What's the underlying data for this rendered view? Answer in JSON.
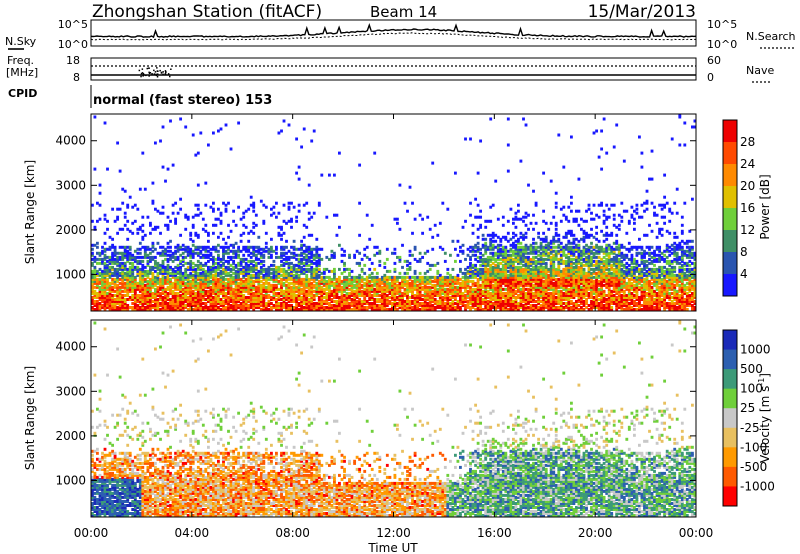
{
  "header": {
    "station": "Zhongshan Station (fitACF)",
    "beam": "Beam 14",
    "date": "15/Mar/2013"
  },
  "noise_panel": {
    "left_label": "N.Sky",
    "right_label": "N.Search",
    "tick_top": "10^5",
    "tick_bottom": "10^0"
  },
  "freq_panel": {
    "left_label_line1": "Freq.",
    "left_label_line2": "[MHz]",
    "right_label": "Nave",
    "left_tick_top": "18",
    "left_tick_bottom": "8",
    "right_tick_top": "60",
    "right_tick_bottom": "0"
  },
  "cpid_panel": {
    "left_label": "CPID",
    "text": "normal (fast stereo) 153"
  },
  "colors": {
    "power_scale": [
      "#1818ff",
      "#2a55b0",
      "#3f8f66",
      "#6fcf3a",
      "#e0c000",
      "#ff8a00",
      "#ff4a00",
      "#ee0000"
    ],
    "velocity_scale": [
      "#ff0000",
      "#ff5a00",
      "#ff9a00",
      "#e8c060",
      "#c8c8c8",
      "#6fcf3a",
      "#3c9a78",
      "#2c5fb0",
      "#1a2ab8"
    ]
  },
  "chart_data": [
    {
      "type": "heatmap",
      "panel": "power",
      "xlabel": "Time UT",
      "ylabel": "Slant Range [km]",
      "x_tick_labels": [
        "00:00",
        "04:00",
        "08:00",
        "12:00",
        "16:00",
        "20:00",
        "00:00"
      ],
      "xlim": [
        0,
        24
      ],
      "y_tick_labels": [
        "1000",
        "2000",
        "3000",
        "4000"
      ],
      "ylim": [
        180,
        4600
      ],
      "colorbar_label": "Power [dB]",
      "colorbar_ticks": [
        "4",
        "8",
        "12",
        "16",
        "20",
        "24",
        "28"
      ],
      "colorbar_range": [
        0,
        30
      ]
    },
    {
      "type": "heatmap",
      "panel": "velocity",
      "xlabel": "Time UT",
      "ylabel": "Slant Range [km]",
      "x_tick_labels": [
        "00:00",
        "04:00",
        "08:00",
        "12:00",
        "16:00",
        "20:00",
        "00:00"
      ],
      "xlim": [
        0,
        24
      ],
      "y_tick_labels": [
        "1000",
        "2000",
        "3000",
        "4000"
      ],
      "ylim": [
        180,
        4600
      ],
      "colorbar_label": "Velocity [m s",
      "colorbar_label_sup": "-1",
      "colorbar_label_end": "]",
      "colorbar_ticks": [
        "1000",
        "500",
        "100",
        "25",
        "-25",
        "-100",
        "-500",
        "-1000"
      ]
    }
  ]
}
